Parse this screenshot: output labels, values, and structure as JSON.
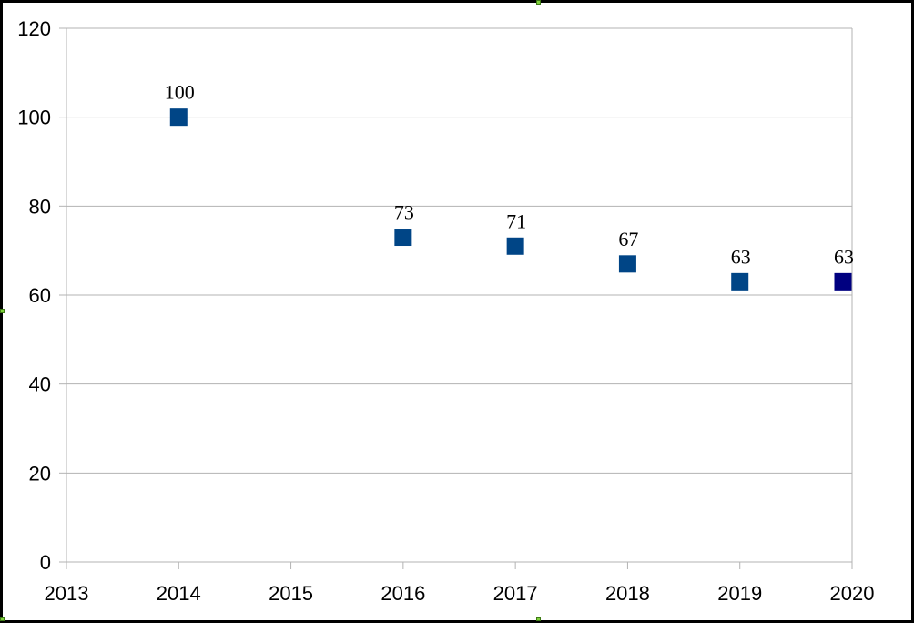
{
  "chart_data": {
    "type": "scatter",
    "x": [
      2014,
      2016,
      2017,
      2018,
      2019,
      2020
    ],
    "series": [
      {
        "values": [
          100,
          73,
          71,
          67,
          63,
          63
        ],
        "data_labels": [
          "100",
          "73",
          "71",
          "67",
          "63",
          "63"
        ]
      }
    ],
    "title": "",
    "xlabel": "",
    "ylabel": "",
    "xlim": [
      2013,
      2020
    ],
    "ylim": [
      0,
      120
    ],
    "x_ticks": [
      "2013",
      "2014",
      "2015",
      "2016",
      "2017",
      "2018",
      "2019",
      "2020"
    ],
    "y_ticks": [
      "0",
      "20",
      "40",
      "60",
      "80",
      "100",
      "120"
    ],
    "grid": "horizontal",
    "legend": "none",
    "marker": "square",
    "colors": {
      "marker": "#004586",
      "marker_last": "#000080",
      "grid": "#b3b3b3",
      "axis": "#b3b3b3"
    }
  }
}
